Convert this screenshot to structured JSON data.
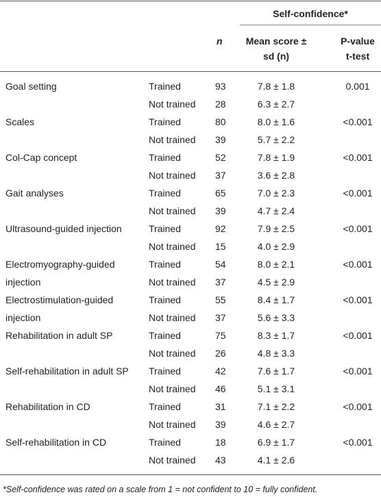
{
  "header": {
    "group_title": "Self-confidence*",
    "n": "n",
    "mean": [
      "Mean score ±",
      "sd (n)"
    ],
    "p": [
      "P-value",
      "t-test"
    ]
  },
  "rows": [
    {
      "skill": [
        "Goal setting"
      ],
      "trained": {
        "group": "Trained",
        "n": 93,
        "mean": "7.8 ± 1.8",
        "p": "0.001"
      },
      "not_trained": {
        "group": "Not trained",
        "n": 28,
        "mean": "6.3 ± 2.7"
      }
    },
    {
      "skill": [
        "Scales"
      ],
      "trained": {
        "group": "Trained",
        "n": 80,
        "mean": "8.0 ± 1.6",
        "p": "<0.001"
      },
      "not_trained": {
        "group": "Not trained",
        "n": 39,
        "mean": "5.7 ± 2.2"
      }
    },
    {
      "skill": [
        "Col-Cap concept"
      ],
      "trained": {
        "group": "Trained",
        "n": 52,
        "mean": "7.8 ± 1.9",
        "p": "<0.001"
      },
      "not_trained": {
        "group": "Not trained",
        "n": 37,
        "mean": "3.6 ± 2.8"
      }
    },
    {
      "skill": [
        "Gait analyses"
      ],
      "trained": {
        "group": "Trained",
        "n": 65,
        "mean": "7.0 ± 2.3",
        "p": "<0.001"
      },
      "not_trained": {
        "group": "Not trained",
        "n": 39,
        "mean": "4.7 ± 2.4"
      }
    },
    {
      "skill": [
        "Ultrasound-guided injection"
      ],
      "trained": {
        "group": "Trained",
        "n": 92,
        "mean": "7.9 ± 2.5",
        "p": "<0.001"
      },
      "not_trained": {
        "group": "Not trained",
        "n": 15,
        "mean": "4.0 ± 2.9"
      }
    },
    {
      "skill": [
        "Electromyography-guided",
        "injection"
      ],
      "trained": {
        "group": "Trained",
        "n": 54,
        "mean": "8.0 ± 2.1",
        "p": "<0.001"
      },
      "not_trained": {
        "group": "Not trained",
        "n": 37,
        "mean": "4.5 ± 2.9"
      }
    },
    {
      "skill": [
        "Electrostimulation-guided",
        "injection"
      ],
      "trained": {
        "group": "Trained",
        "n": 55,
        "mean": "8.4 ± 1.7",
        "p": "<0.001"
      },
      "not_trained": {
        "group": "Not trained",
        "n": 37,
        "mean": "5.6 ± 3.3"
      }
    },
    {
      "skill": [
        "Rehabilitation in adult SP"
      ],
      "trained": {
        "group": "Trained",
        "n": 75,
        "mean": "8.3 ± 1.7",
        "p": "<0.001"
      },
      "not_trained": {
        "group": "Not trained",
        "n": 26,
        "mean": "4.8 ± 3.3"
      }
    },
    {
      "skill": [
        "Self-rehabilitation in adult SP"
      ],
      "trained": {
        "group": "Trained",
        "n": 42,
        "mean": "7.6 ± 1.7",
        "p": "<0.001"
      },
      "not_trained": {
        "group": "Not trained",
        "n": 46,
        "mean": "5.1 ± 3.1"
      }
    },
    {
      "skill": [
        "Rehabilitation in CD"
      ],
      "trained": {
        "group": "Trained",
        "n": 31,
        "mean": "7.1 ± 2.2",
        "p": "<0.001"
      },
      "not_trained": {
        "group": "Not trained",
        "n": 39,
        "mean": "4.6 ± 2.7"
      }
    },
    {
      "skill": [
        "Self-rehabilitation in CD"
      ],
      "trained": {
        "group": "Trained",
        "n": 18,
        "mean": "6.9 ± 1.7",
        "p": "<0.001"
      },
      "not_trained": {
        "group": "Not trained",
        "n": 43,
        "mean": "4.1 ± 2.6"
      }
    }
  ],
  "footnote": "*Self-confidence was rated on a scale from 1 = not confident to 10 = fully confident."
}
